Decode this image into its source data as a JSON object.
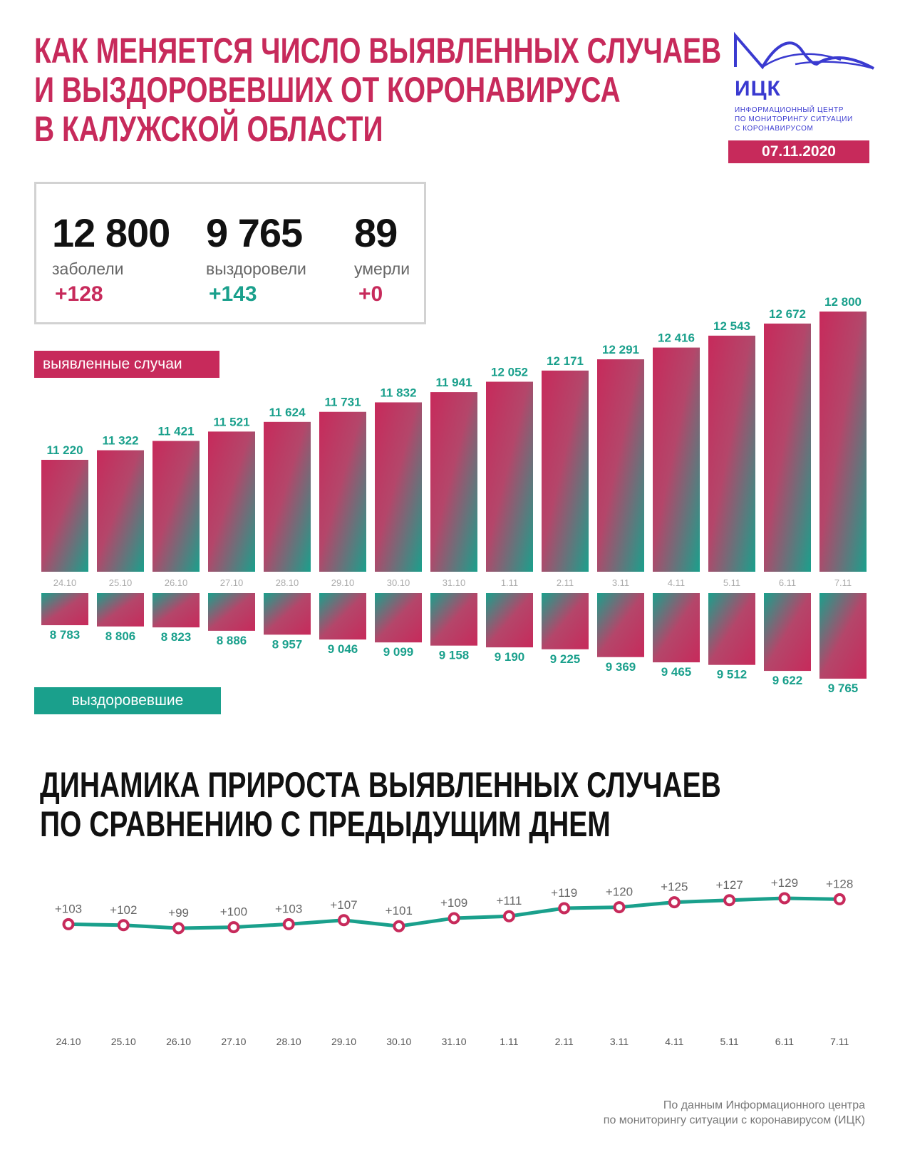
{
  "header": {
    "title_lines": [
      "КАК МЕНЯЕТСЯ ЧИСЛО ВЫЯВЛЕННЫХ СЛУЧАЕВ",
      "И ВЫЗДОРОВЕВШИХ ОТ КОРОНАВИРУСА",
      "В КАЛУЖСКОЙ ОБЛАСТИ"
    ],
    "date": "07.11.2020"
  },
  "logo": {
    "abbr": "ИЦК",
    "lines": [
      "ИНФОРМАЦИОННЫЙ ЦЕНТР",
      "ПО МОНИТОРИНГУ СИТУАЦИИ",
      "С КОРОНАВИРУСОМ"
    ],
    "color": "#3a3ad0"
  },
  "summary": {
    "cases": {
      "value": "12 800",
      "label": "заболели",
      "delta": "+128"
    },
    "recovered": {
      "value": "9 765",
      "label": "выздоровели",
      "delta": "+143"
    },
    "deaths": {
      "value": "89",
      "label": "умерли",
      "delta": "+0"
    }
  },
  "colors": {
    "cases": "#c72a5b",
    "recovered": "#1aa08c",
    "line": "#1aa08c",
    "marker": "#c72a5b"
  },
  "chart_data": [
    {
      "type": "bar",
      "categories": [
        "24.10",
        "25.10",
        "26.10",
        "27.10",
        "28.10",
        "29.10",
        "30.10",
        "31.10",
        "1.11",
        "2.11",
        "3.11",
        "4.11",
        "5.11",
        "6.11",
        "7.11"
      ],
      "series": [
        {
          "name": "выявленные случаи",
          "values": [
            11220,
            11322,
            11421,
            11521,
            11624,
            11731,
            11832,
            11941,
            12052,
            12171,
            12291,
            12416,
            12543,
            12672,
            12800
          ],
          "labels": [
            "11 220",
            "11 322",
            "11 421",
            "11 521",
            "11 624",
            "11 731",
            "11 832",
            "11 941",
            "12 052",
            "12 171",
            "12 291",
            "12 416",
            "12 543",
            "12 672",
            "12 800"
          ]
        },
        {
          "name": "выздоровевшие",
          "values": [
            8783,
            8806,
            8823,
            8886,
            8957,
            9046,
            9099,
            9158,
            9190,
            9225,
            9369,
            9465,
            9512,
            9622,
            9765
          ],
          "labels": [
            "8 783",
            "8 806",
            "8 823",
            "8 886",
            "8 957",
            "9 046",
            "9 099",
            "9 158",
            "9 190",
            "9 225",
            "9 369",
            "9 465",
            "9 512",
            "9 622",
            "9 765"
          ]
        }
      ]
    },
    {
      "type": "line",
      "title_lines": [
        "ДИНАМИКА ПРИРОСТА ВЫЯВЛЕННЫХ СЛУЧАЕВ",
        "ПО СРАВНЕНИЮ С ПРЕДЫДУЩИМ ДНЕМ"
      ],
      "categories": [
        "24.10",
        "25.10",
        "26.10",
        "27.10",
        "28.10",
        "29.10",
        "30.10",
        "31.10",
        "1.11",
        "2.11",
        "3.11",
        "4.11",
        "5.11",
        "6.11",
        "7.11"
      ],
      "values": [
        103,
        102,
        99,
        100,
        103,
        107,
        101,
        109,
        111,
        119,
        120,
        125,
        127,
        129,
        128
      ],
      "labels": [
        "+103",
        "+102",
        "+99",
        "+100",
        "+103",
        "+107",
        "+101",
        "+109",
        "+111",
        "+119",
        "+120",
        "+125",
        "+127",
        "+129",
        "+128"
      ]
    }
  ],
  "source_lines": [
    "По данным Информационного центра",
    "по мониторингу ситуации с коронавирусом (ИЦК)"
  ]
}
